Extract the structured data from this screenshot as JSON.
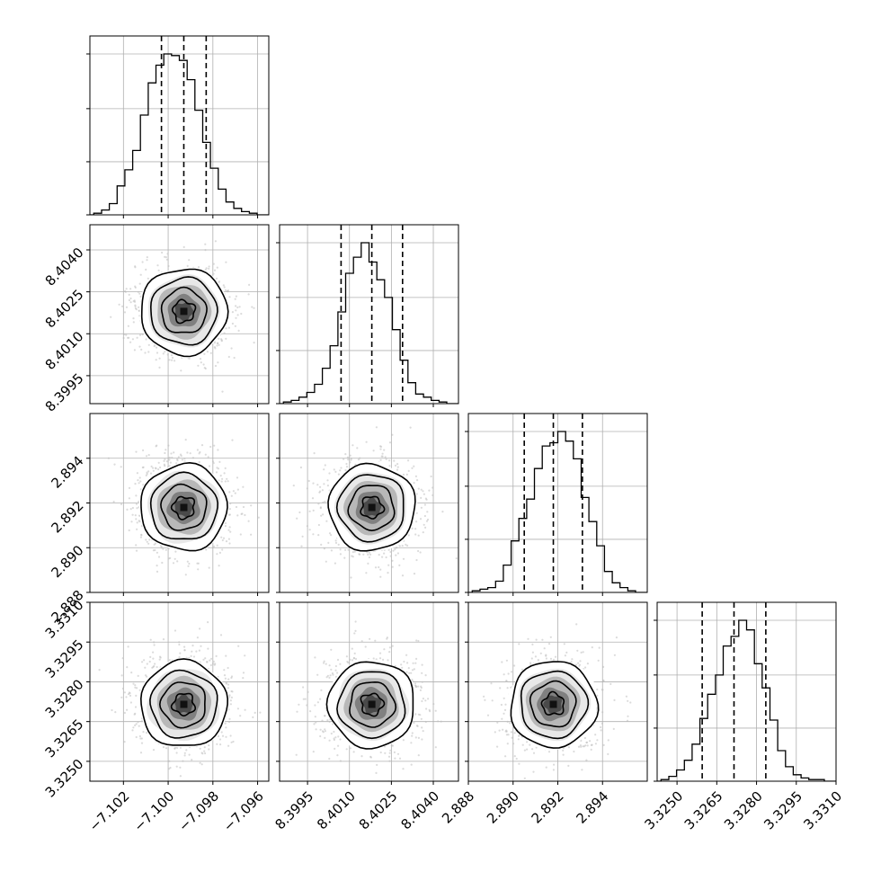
{
  "chart_data": {
    "type": "corner",
    "parameters": [
      {
        "range": [
          -7.1035,
          -7.0955
        ],
        "median": -7.0993,
        "q16": -7.1003,
        "q84": -7.0983,
        "ticks": [
          -7.102,
          -7.1,
          -7.098,
          -7.096
        ],
        "tick_labels": [
          "−7.102",
          "−7.100",
          "−7.098",
          "−7.096"
        ],
        "hist": [
          0.01,
          0.03,
          0.07,
          0.18,
          0.28,
          0.4,
          0.62,
          0.82,
          0.93,
          1.0,
          0.99,
          0.96,
          0.84,
          0.65,
          0.45,
          0.29,
          0.16,
          0.08,
          0.04,
          0.02,
          0.01
        ]
      },
      {
        "range": [
          8.3985,
          8.4049
        ],
        "median": 8.4018,
        "q16": 8.4007,
        "q84": 8.4029,
        "ticks": [
          8.3995,
          8.401,
          8.4025,
          8.404
        ],
        "tick_labels": [
          "8.3995",
          "8.4010",
          "8.4025",
          "8.4040"
        ],
        "hist": [
          0.01,
          0.02,
          0.04,
          0.07,
          0.12,
          0.22,
          0.36,
          0.57,
          0.81,
          0.91,
          1.0,
          0.88,
          0.77,
          0.66,
          0.46,
          0.27,
          0.13,
          0.06,
          0.04,
          0.02,
          0.01
        ]
      },
      {
        "range": [
          2.888,
          2.896
        ],
        "median": 2.8918,
        "q16": 2.8905,
        "q84": 2.8931,
        "ticks": [
          2.888,
          2.89,
          2.892,
          2.894
        ],
        "tick_labels": [
          "2.888",
          "2.890",
          "2.892",
          "2.894"
        ],
        "hist": [
          0.01,
          0.02,
          0.03,
          0.07,
          0.17,
          0.32,
          0.46,
          0.58,
          0.77,
          0.91,
          0.93,
          1.0,
          0.94,
          0.83,
          0.59,
          0.44,
          0.29,
          0.13,
          0.06,
          0.03,
          0.01
        ]
      },
      {
        "range": [
          3.32425,
          3.331
        ],
        "median": 3.32715,
        "q16": 3.32595,
        "q84": 3.32835,
        "ticks": [
          3.325,
          3.3265,
          3.328,
          3.3295,
          3.331
        ],
        "tick_labels": [
          "3.3250",
          "3.3265",
          "3.3280",
          "3.3295",
          "3.3310"
        ],
        "hist": [
          0.01,
          0.03,
          0.07,
          0.13,
          0.23,
          0.39,
          0.54,
          0.66,
          0.84,
          0.9,
          1.0,
          0.94,
          0.73,
          0.58,
          0.38,
          0.19,
          0.09,
          0.04,
          0.02,
          0.01,
          0.01
        ]
      }
    ],
    "grid": true,
    "quantile_lines": "dashed",
    "scatter_color": "#bdbdbd",
    "contour_color": "#000000"
  }
}
